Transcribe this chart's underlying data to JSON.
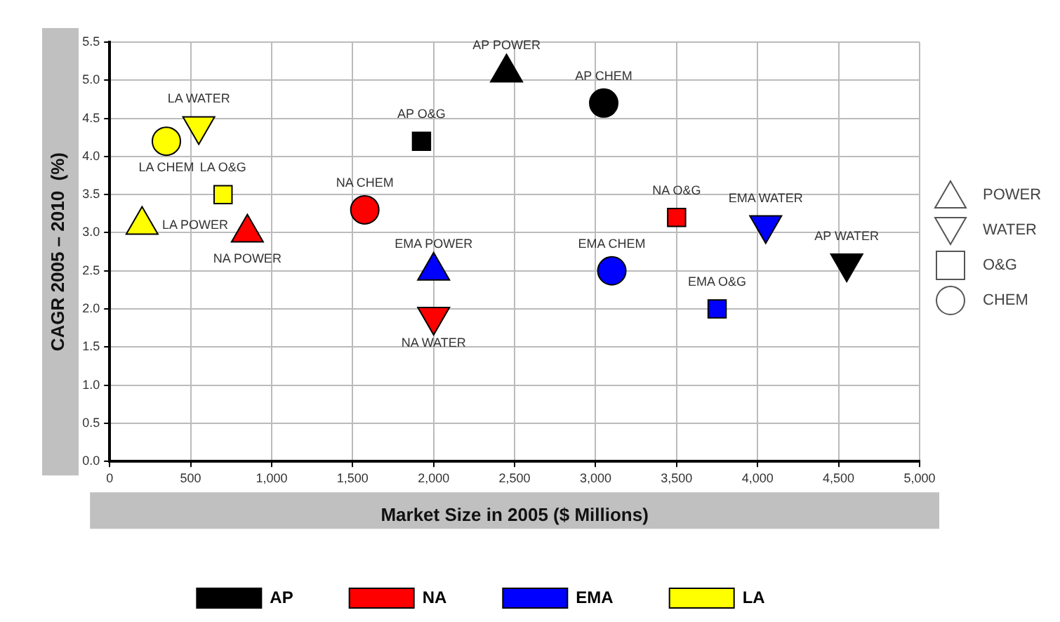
{
  "chart_data": {
    "type": "scatter",
    "xlabel": "Market Size in 2005 ($ Millions)",
    "ylabel": "CAGR 2005 – 2010  (%)",
    "xlim": [
      0,
      5000
    ],
    "xticks": [
      0,
      500,
      {
        "value": 1000,
        "label": "1,000"
      },
      {
        "value": 1500,
        "label": "1,500"
      },
      {
        "value": 2000,
        "label": "2,000"
      },
      {
        "value": 2500,
        "label": "2,500"
      },
      {
        "value": 3000,
        "label": "3,000"
      },
      {
        "value": 3500,
        "label": "3,500"
      },
      {
        "value": 4000,
        "label": "4,000"
      },
      {
        "value": 4500,
        "label": "4,500"
      },
      {
        "value": 5000,
        "label": "5,000"
      }
    ],
    "ylim": [
      0,
      5.5
    ],
    "yticks": [
      {
        "value": 0,
        "label": "0.0"
      },
      {
        "value": 0.5,
        "label": "0.5"
      },
      {
        "value": 1,
        "label": "1.0"
      },
      {
        "value": 1.5,
        "label": "1.5"
      },
      {
        "value": 2,
        "label": "2.0"
      },
      {
        "value": 2.5,
        "label": "2.5"
      },
      {
        "value": 3,
        "label": "3.0"
      },
      {
        "value": 3.5,
        "label": "3.5"
      },
      {
        "value": 4,
        "label": "4.0"
      },
      {
        "value": 4.5,
        "label": "4.5"
      },
      {
        "value": 5,
        "label": "5.0"
      },
      {
        "value": 5.5,
        "label": "5.5"
      }
    ],
    "grid": true,
    "legend": "bottom",
    "annotations": [
      "POWER",
      "WATER",
      "O&G",
      "CHEM"
    ],
    "series": [
      {
        "name": "AP",
        "color": "#000000",
        "x": [
          2450,
          4550,
          1925,
          3050
        ],
        "values": [
          5.1,
          2.6,
          4.2,
          4.7
        ],
        "marker": [
          "triangle",
          "triangle-down",
          "square",
          "circle"
        ],
        "value_labels": [
          "AP POWER",
          "AP WATER",
          "AP O&G",
          "AP CHEM"
        ]
      },
      {
        "name": "NA",
        "color": "#ff0000",
        "x": [
          850,
          2000,
          3500,
          1575
        ],
        "values": [
          3.0,
          1.9,
          3.2,
          3.3
        ],
        "marker": [
          "triangle",
          "triangle-down",
          "square",
          "circle"
        ],
        "value_labels": [
          "NA POWER",
          "NA WATER",
          "NA O&G",
          "NA CHEM"
        ]
      },
      {
        "name": "EMA",
        "color": "#0000ff",
        "x": [
          2000,
          4050,
          3750,
          3100
        ],
        "values": [
          2.5,
          3.1,
          2.0,
          2.5
        ],
        "marker": [
          "triangle",
          "triangle-down",
          "square",
          "circle"
        ],
        "value_labels": [
          "EMA POWER",
          "EMA WATER",
          "EMA O&G",
          "EMA CHEM"
        ]
      },
      {
        "name": "LA",
        "color": "#ffff00",
        "x": [
          200,
          550,
          700,
          350
        ],
        "values": [
          3.1,
          4.4,
          3.5,
          4.2
        ],
        "marker": [
          "triangle",
          "triangle-down",
          "square",
          "circle"
        ],
        "value_labels": [
          "LA POWER",
          "LA WATER",
          "LA O&G",
          "LA CHEM"
        ]
      }
    ]
  }
}
